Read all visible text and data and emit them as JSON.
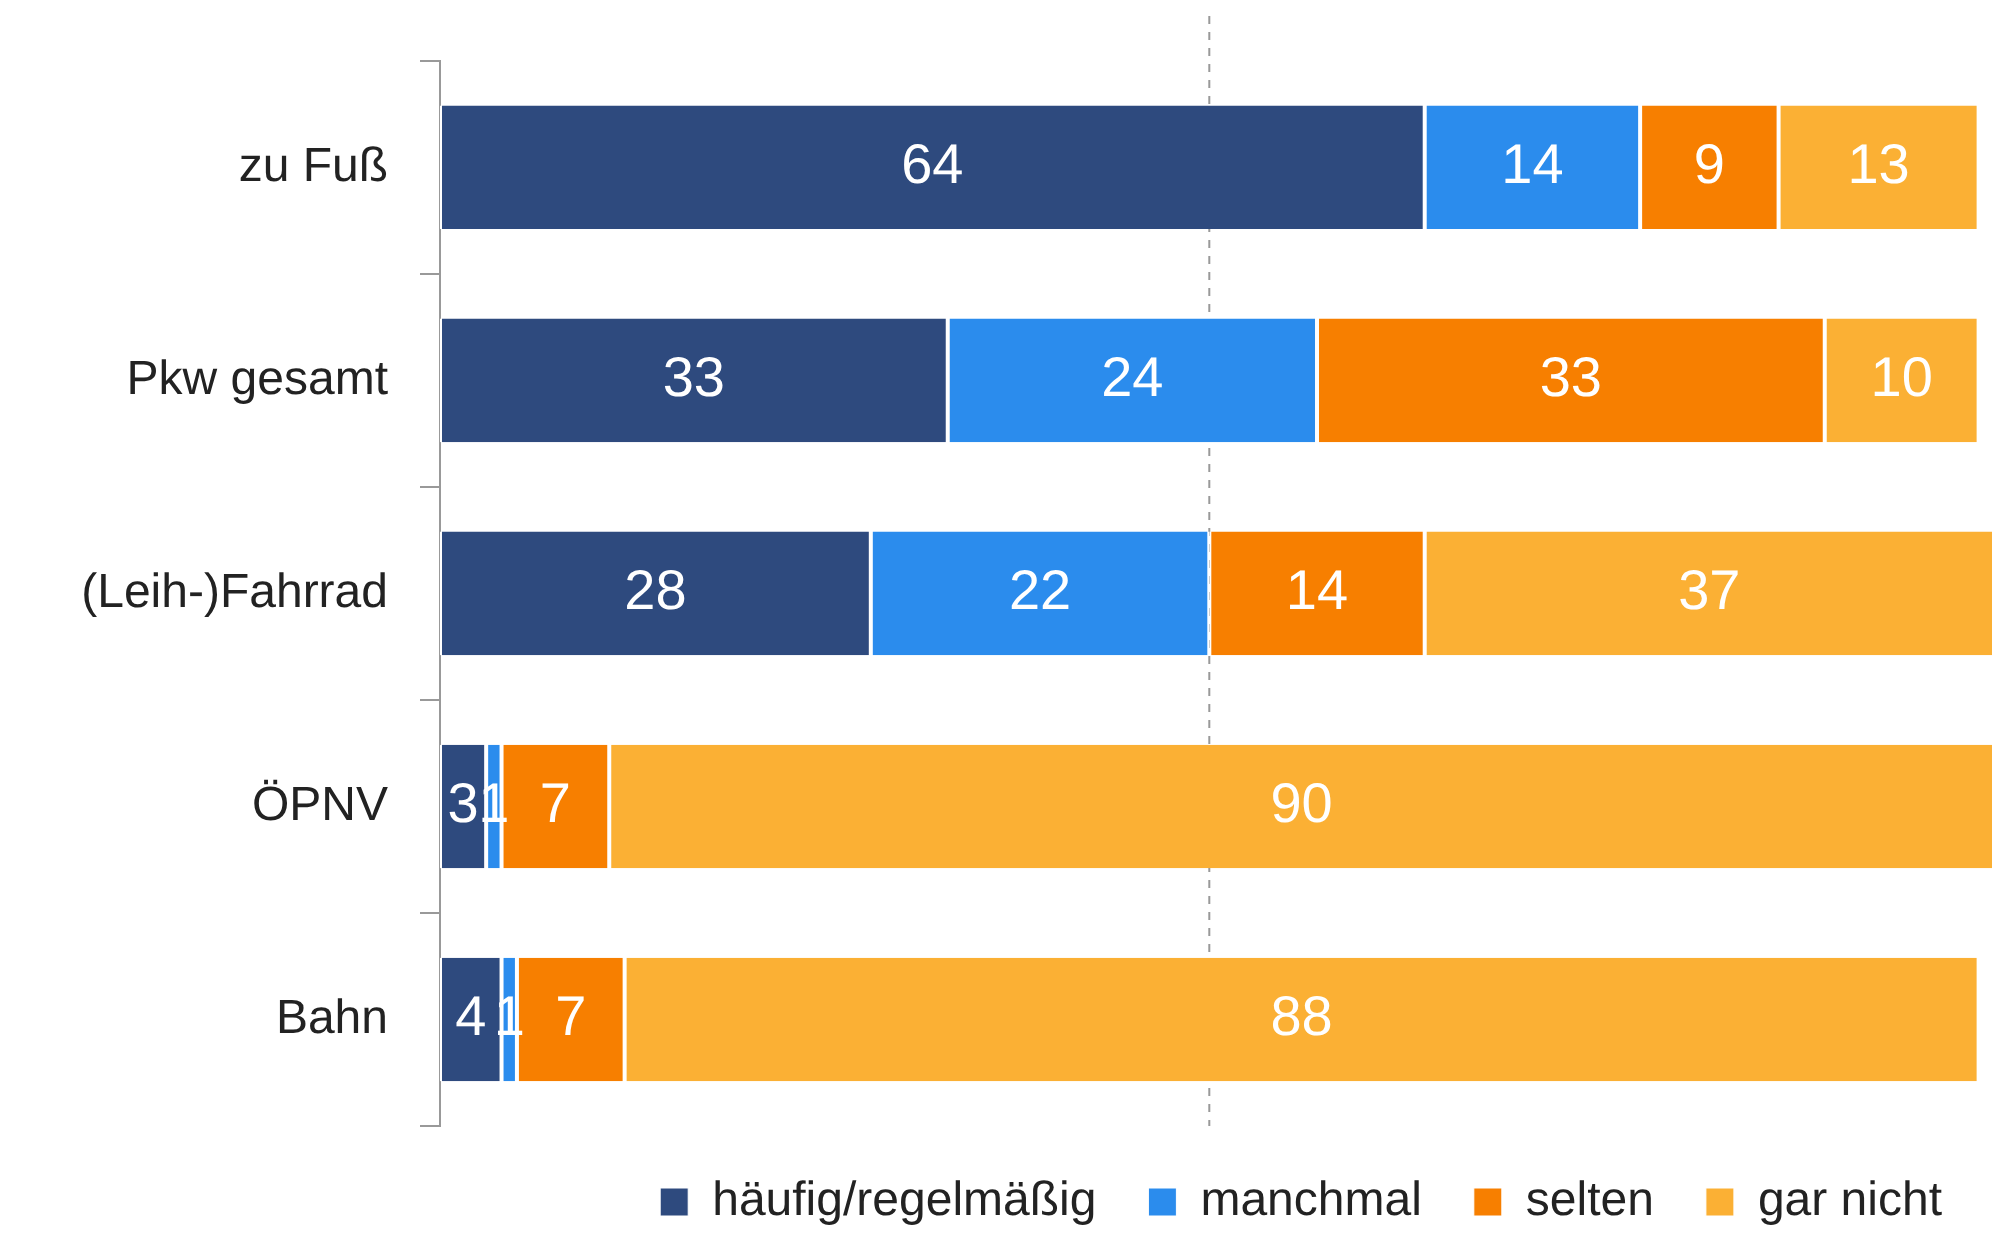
{
  "chart_data": {
    "type": "bar",
    "orientation": "horizontal",
    "stacked": true,
    "categories": [
      "zu Fuß",
      "Pkw gesamt",
      "(Leih-)Fahrrad",
      "ÖPNV",
      "Bahn"
    ],
    "series": [
      {
        "name": "häufig/regelmäßig",
        "color": "#2e4a7e",
        "values": [
          64,
          33,
          28,
          3,
          4
        ]
      },
      {
        "name": "manchmal",
        "color": "#2b8ced",
        "values": [
          14,
          24,
          22,
          1,
          1
        ]
      },
      {
        "name": "selten",
        "color": "#f77f00",
        "values": [
          9,
          33,
          14,
          7,
          7
        ]
      },
      {
        "name": "gar nicht",
        "color": "#fbb034",
        "values": [
          13,
          10,
          37,
          90,
          88
        ]
      }
    ],
    "xlim": [
      0,
      101
    ],
    "tick_labels": "y",
    "data_labels": true,
    "legend": "bottom right",
    "marker": "square",
    "ref_lines": [
      {
        "axis": "x",
        "value": 50,
        "color": "#999999",
        "line_style": "dashed"
      }
    ]
  }
}
